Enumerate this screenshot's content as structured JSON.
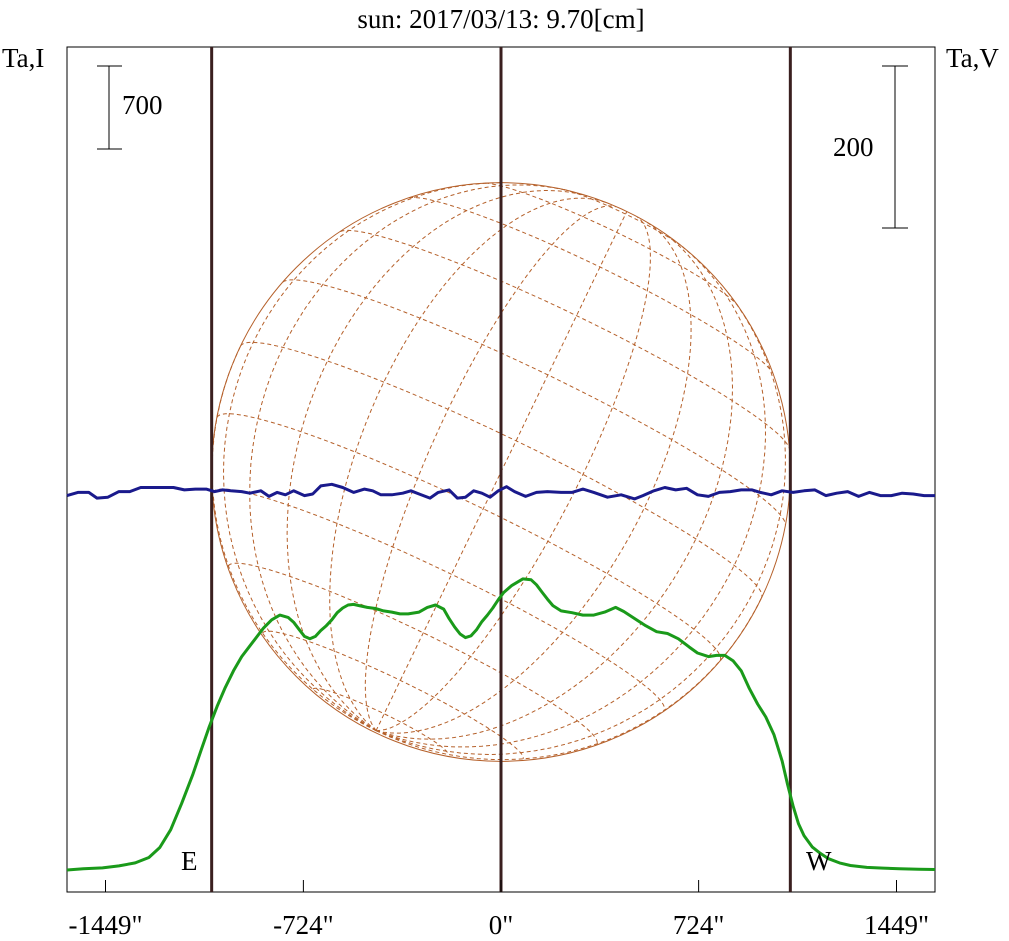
{
  "chart_data": {
    "type": "line",
    "title": "sun: 2017/03/13: 9.70[cm]",
    "title_color": "#1a1a6e",
    "ylabel_left": "Ta,I",
    "ylabel_right": "Ta,V",
    "scale_bars": {
      "left": 700,
      "right": 200
    },
    "x_ticks": [
      -1449,
      -724,
      0,
      724,
      1449
    ],
    "x_tick_labels": [
      "-1449\"",
      "-724\"",
      "0\"",
      "724\"",
      "1449\""
    ],
    "xlim": [
      -1590,
      1590
    ],
    "limb_labels": {
      "east": "E",
      "west": "W"
    },
    "limb_x": [
      -1060,
      0,
      1060
    ],
    "solar_radius": 1060,
    "grid": false,
    "colors": {
      "stokes_I": "#1a9a1a",
      "stokes_V": "#1a1a8c",
      "disk": "#b5602a",
      "limb_lines": "#3a1f1f",
      "axes": "#000000"
    },
    "series": [
      {
        "key": "stokes_I",
        "axis": "left",
        "x": [
          -1590,
          -1530,
          -1460,
          -1400,
          -1340,
          -1290,
          -1250,
          -1210,
          -1170,
          -1130,
          -1100,
          -1070,
          -1040,
          -1010,
          -980,
          -950,
          -910,
          -870,
          -840,
          -810,
          -780,
          -760,
          -740,
          -720,
          -700,
          -680,
          -660,
          -640,
          -620,
          -600,
          -580,
          -560,
          -540,
          -520,
          -490,
          -460,
          -430,
          -400,
          -370,
          -340,
          -300,
          -270,
          -240,
          -210,
          -190,
          -170,
          -150,
          -130,
          -110,
          -90,
          -70,
          -50,
          -30,
          -10,
          10,
          40,
          80,
          110,
          130,
          150,
          170,
          190,
          220,
          260,
          300,
          340,
          380,
          420,
          450,
          490,
          530,
          570,
          610,
          650,
          690,
          720,
          760,
          790,
          820,
          850,
          880,
          910,
          940,
          970,
          1000,
          1030,
          1050,
          1070,
          1090,
          1110,
          1140,
          1170,
          1200,
          1240,
          1280,
          1340,
          1400,
          1460,
          1530,
          1590
        ],
        "y": [
          0,
          10,
          18,
          35,
          60,
          105,
          190,
          340,
          560,
          800,
          1000,
          1200,
          1380,
          1540,
          1680,
          1800,
          1920,
          2040,
          2110,
          2150,
          2130,
          2090,
          2030,
          1970,
          1950,
          1970,
          2020,
          2060,
          2110,
          2170,
          2210,
          2235,
          2240,
          2230,
          2215,
          2205,
          2185,
          2175,
          2160,
          2160,
          2175,
          2215,
          2235,
          2200,
          2120,
          2050,
          1990,
          1960,
          1975,
          2025,
          2095,
          2150,
          2210,
          2280,
          2340,
          2400,
          2455,
          2448,
          2405,
          2345,
          2285,
          2230,
          2185,
          2170,
          2150,
          2150,
          2175,
          2215,
          2180,
          2120,
          2060,
          2010,
          1995,
          1950,
          1880,
          1830,
          1800,
          1810,
          1810,
          1765,
          1680,
          1530,
          1400,
          1290,
          1140,
          920,
          720,
          540,
          390,
          290,
          195,
          140,
          95,
          60,
          38,
          22,
          16,
          10,
          6,
          4
        ]
      },
      {
        "key": "stokes_V",
        "axis": "right",
        "x": [
          -1590,
          -1550,
          -1510,
          -1480,
          -1440,
          -1400,
          -1360,
          -1320,
          -1280,
          -1240,
          -1200,
          -1160,
          -1120,
          -1080,
          -1050,
          -1020,
          -990,
          -950,
          -920,
          -880,
          -850,
          -820,
          -790,
          -760,
          -720,
          -690,
          -660,
          -620,
          -580,
          -540,
          -500,
          -470,
          -440,
          -400,
          -360,
          -330,
          -300,
          -260,
          -230,
          -190,
          -160,
          -130,
          -100,
          -70,
          -40,
          -10,
          20,
          50,
          90,
          130,
          170,
          220,
          260,
          300,
          340,
          390,
          440,
          490,
          520,
          560,
          600,
          640,
          680,
          720,
          760,
          800,
          840,
          880,
          920,
          950,
          990,
          1030,
          1070,
          1110,
          1150,
          1190,
          1230,
          1270,
          1310,
          1350,
          1390,
          1430,
          1470,
          1510,
          1550,
          1590
        ],
        "y": [
          -2,
          2,
          2,
          -5,
          -4,
          3,
          3,
          8,
          8,
          8,
          8,
          5,
          6,
          6,
          3,
          5,
          4,
          3,
          1,
          4,
          -3,
          2,
          -1,
          4,
          -2,
          0,
          10,
          12,
          8,
          2,
          6,
          4,
          -1,
          -1,
          1,
          4,
          0,
          -5,
          2,
          5,
          -5,
          -4,
          4,
          1,
          -4,
          4,
          9,
          3,
          -3,
          2,
          3,
          2,
          2,
          6,
          2,
          -4,
          -1,
          -6,
          -2,
          4,
          8,
          5,
          7,
          -1,
          -3,
          2,
          3,
          5,
          5,
          2,
          -1,
          4,
          2,
          4,
          5,
          -2,
          1,
          3,
          -3,
          2,
          -2,
          -2,
          1,
          0,
          -2,
          -2
        ]
      }
    ]
  }
}
